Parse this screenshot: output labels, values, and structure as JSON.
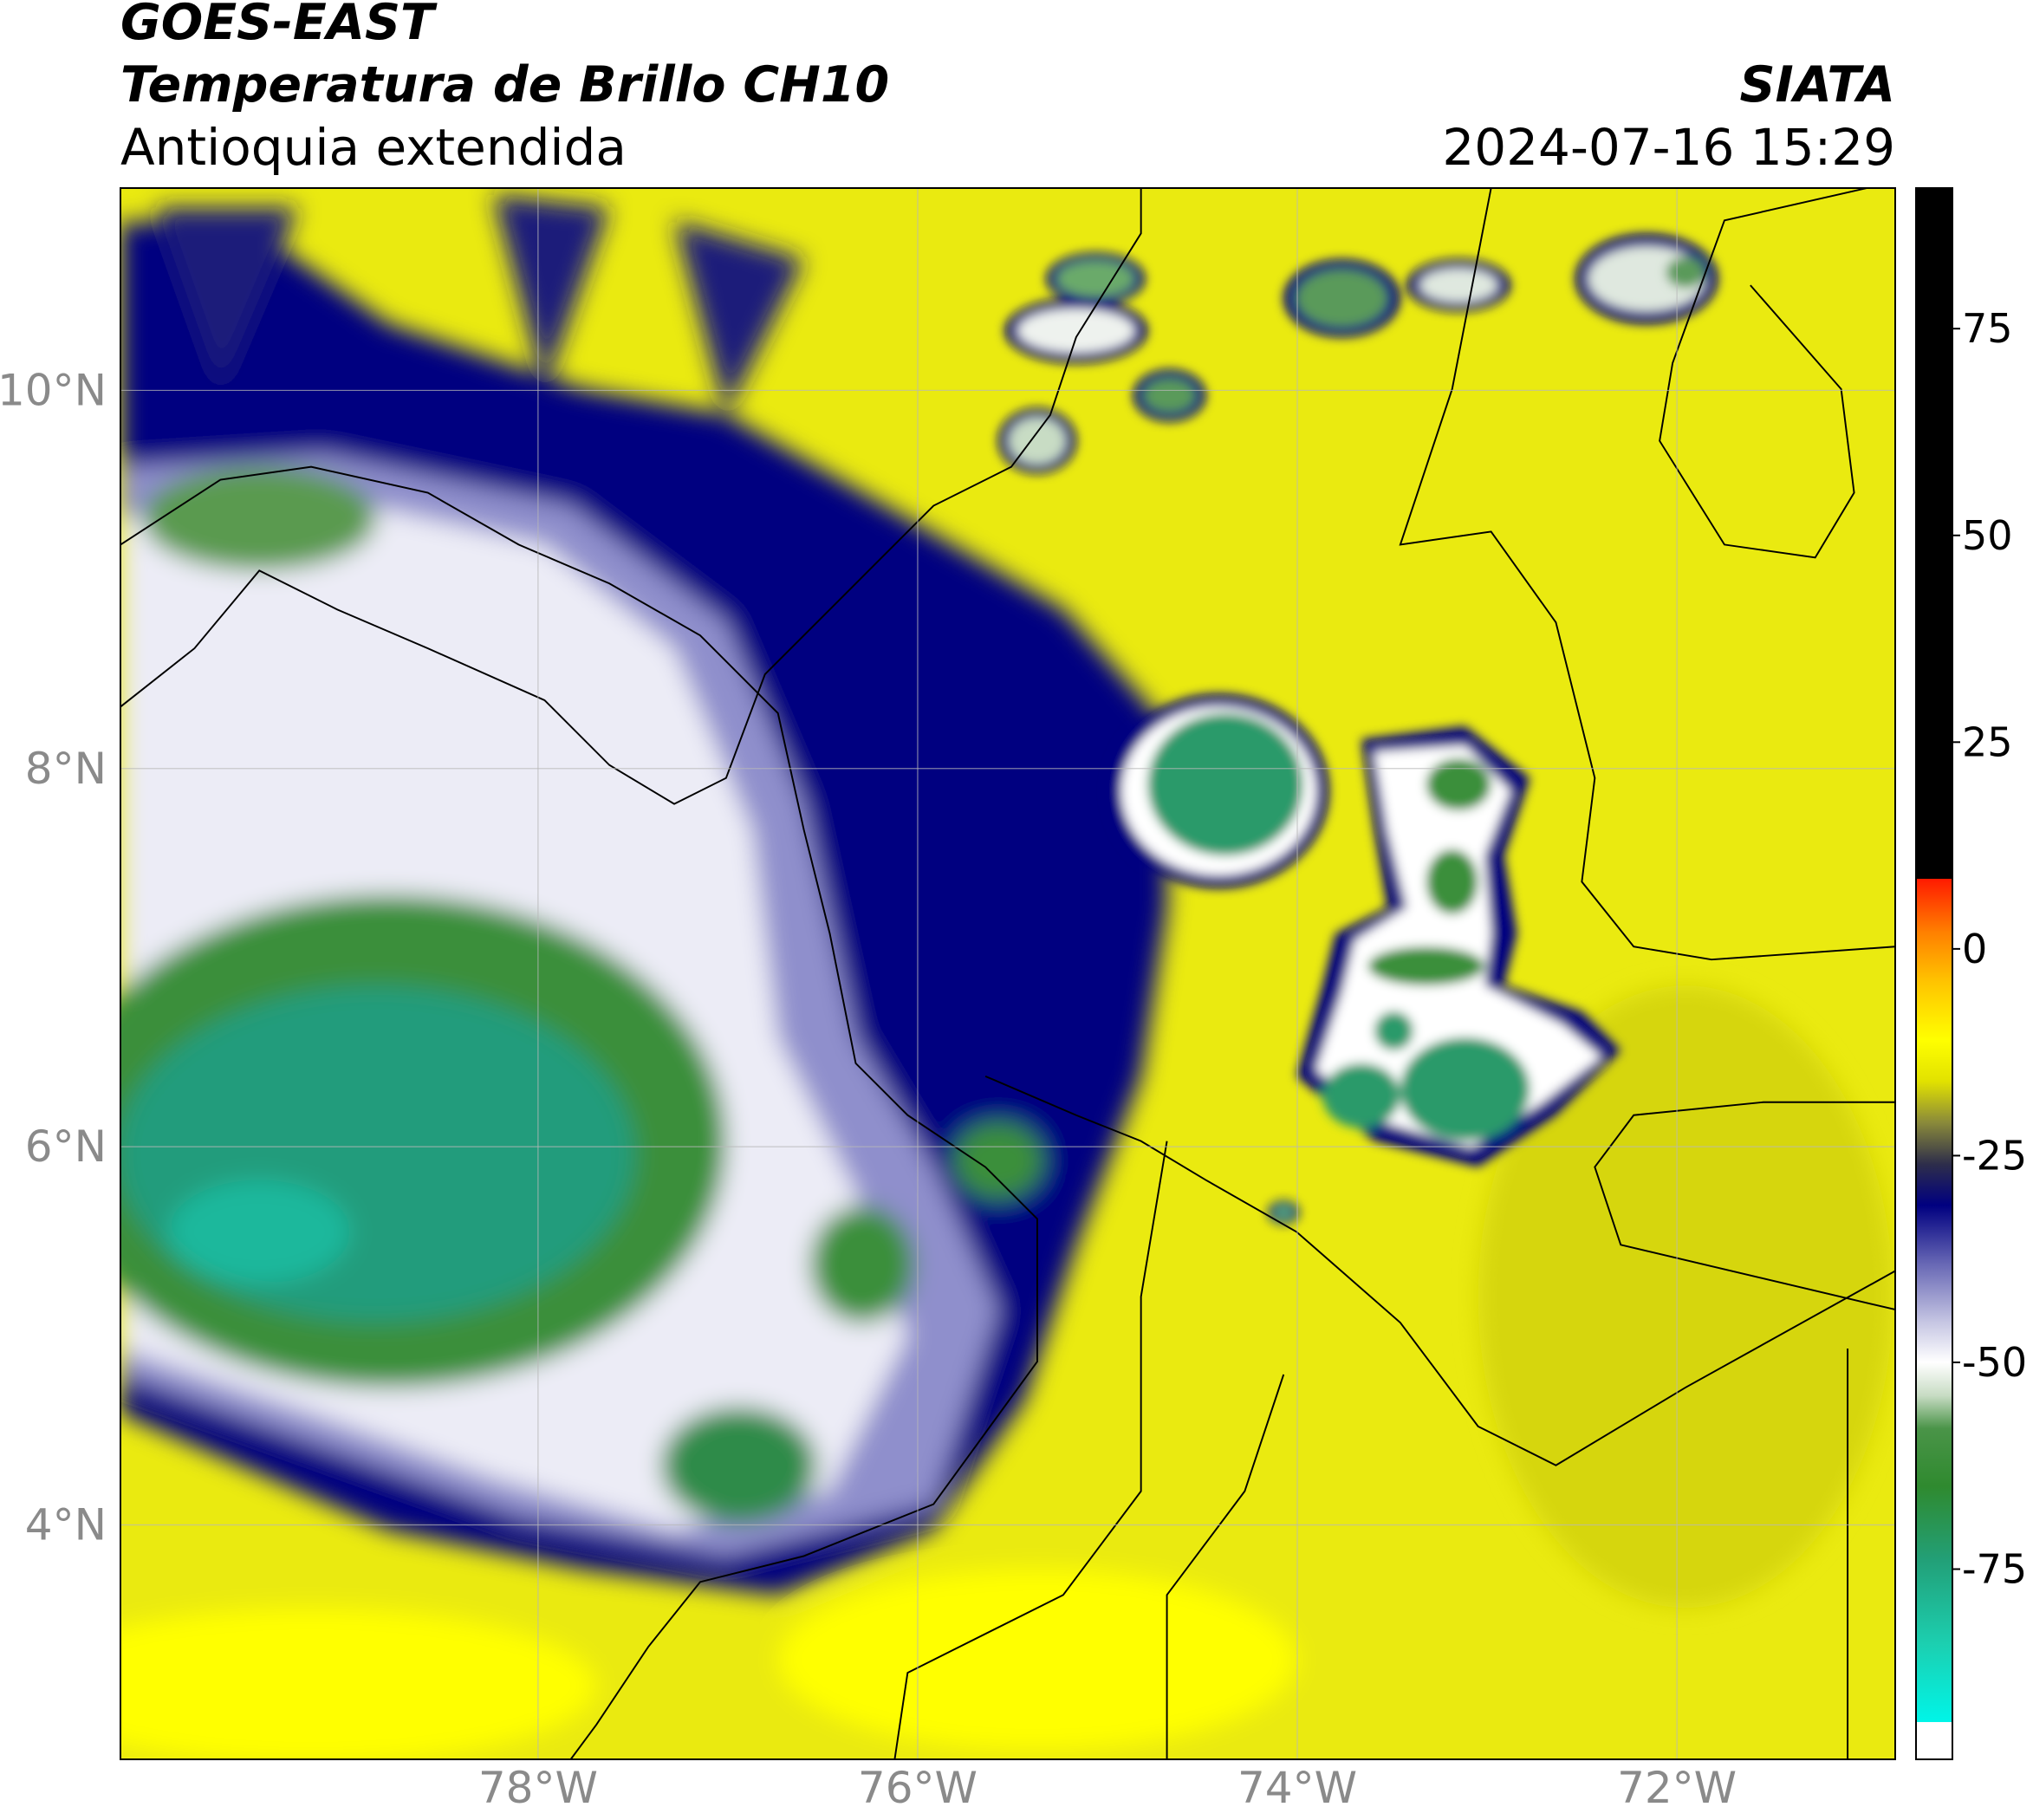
{
  "chart_data": {
    "type": "map",
    "title": "GOES-EAST",
    "subtitle": "Temperatura de Brillo CH10",
    "region": "Antioquia extendida",
    "source": "SIATA",
    "datetime": "2024-07-16 15:29",
    "xlim": [
      -80.2,
      -70.85
    ],
    "ylim": [
      2.76,
      11.07
    ],
    "xticks": [
      {
        "value": -78,
        "label": "78°W"
      },
      {
        "value": -76,
        "label": "76°W"
      },
      {
        "value": -74,
        "label": "74°W"
      },
      {
        "value": -72,
        "label": "72°W"
      }
    ],
    "yticks": [
      {
        "value": 4,
        "label": "4°N"
      },
      {
        "value": 6,
        "label": "6°N"
      },
      {
        "value": 8,
        "label": "8°N"
      },
      {
        "value": 10,
        "label": "10°N"
      }
    ],
    "grid": true,
    "colorbar": {
      "lim": [
        -98,
        92
      ],
      "ticks": [
        -75,
        -50,
        -25,
        0,
        25,
        50,
        75
      ],
      "stops": [
        {
          "value": -98,
          "color": "#ffffff"
        },
        {
          "value": -93.5,
          "color": "#ffffff"
        },
        {
          "value": -93.5,
          "color": "#00f5e8"
        },
        {
          "value": -84,
          "color": "#1ccfb0"
        },
        {
          "value": -74,
          "color": "#22a078"
        },
        {
          "value": -65,
          "color": "#2f8a2f"
        },
        {
          "value": -58,
          "color": "#4a9448"
        },
        {
          "value": -54,
          "color": "#c8dcc4"
        },
        {
          "value": -50,
          "color": "#ffffff"
        },
        {
          "value": -45,
          "color": "#c4c4e2"
        },
        {
          "value": -38,
          "color": "#6666b4"
        },
        {
          "value": -31,
          "color": "#000080"
        },
        {
          "value": -26,
          "color": "#2e2e4a"
        },
        {
          "value": -21,
          "color": "#8a8a3a"
        },
        {
          "value": -16,
          "color": "#e2e200"
        },
        {
          "value": -11,
          "color": "#ffff00"
        },
        {
          "value": -4,
          "color": "#ffc400"
        },
        {
          "value": 2,
          "color": "#ff8000"
        },
        {
          "value": 8.5,
          "color": "#ff1a00"
        },
        {
          "value": 8.5,
          "color": "#000000"
        },
        {
          "value": 92,
          "color": "#000000"
        }
      ]
    }
  }
}
